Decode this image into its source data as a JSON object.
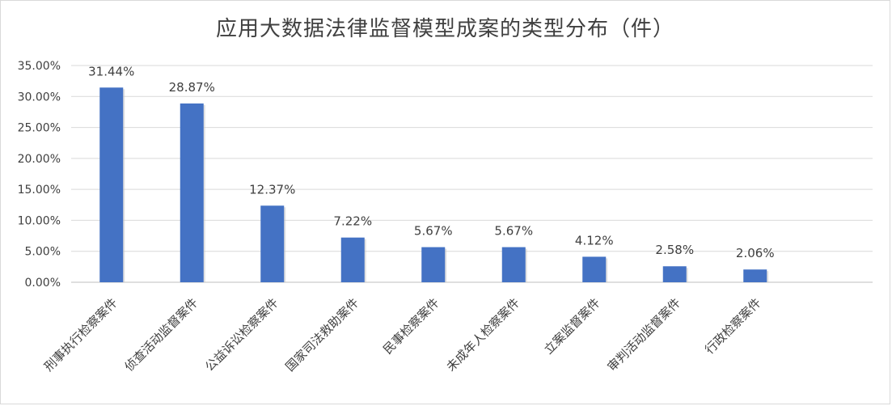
{
  "chart_data": {
    "type": "bar",
    "title": "应用大数据法律监督模型成案的类型分布（件）",
    "xlabel": "",
    "ylabel": "",
    "categories": [
      "刑事执行检察案件",
      "侦查活动监督案件",
      "公益诉讼检察案件",
      "国家司法救助案件",
      "民事检察案件",
      "未成年人检察案件",
      "立案监督案件",
      "审判活动监督案件",
      "行政检察案件"
    ],
    "values": [
      31.44,
      28.87,
      12.37,
      7.22,
      5.67,
      5.67,
      4.12,
      2.58,
      2.06
    ],
    "data_labels": [
      "31.44%",
      "28.87%",
      "12.37%",
      "7.22%",
      "5.67%",
      "5.67%",
      "4.12%",
      "2.58%",
      "2.06%"
    ],
    "ylim": [
      0,
      35
    ],
    "yticks": [
      0,
      5,
      10,
      15,
      20,
      25,
      30,
      35
    ],
    "ytick_labels": [
      "0.00%",
      "5.00%",
      "10.00%",
      "15.00%",
      "20.00%",
      "25.00%",
      "30.00%",
      "35.00%"
    ],
    "grid": true,
    "legend": "none",
    "bar_color": "#4472C4"
  }
}
